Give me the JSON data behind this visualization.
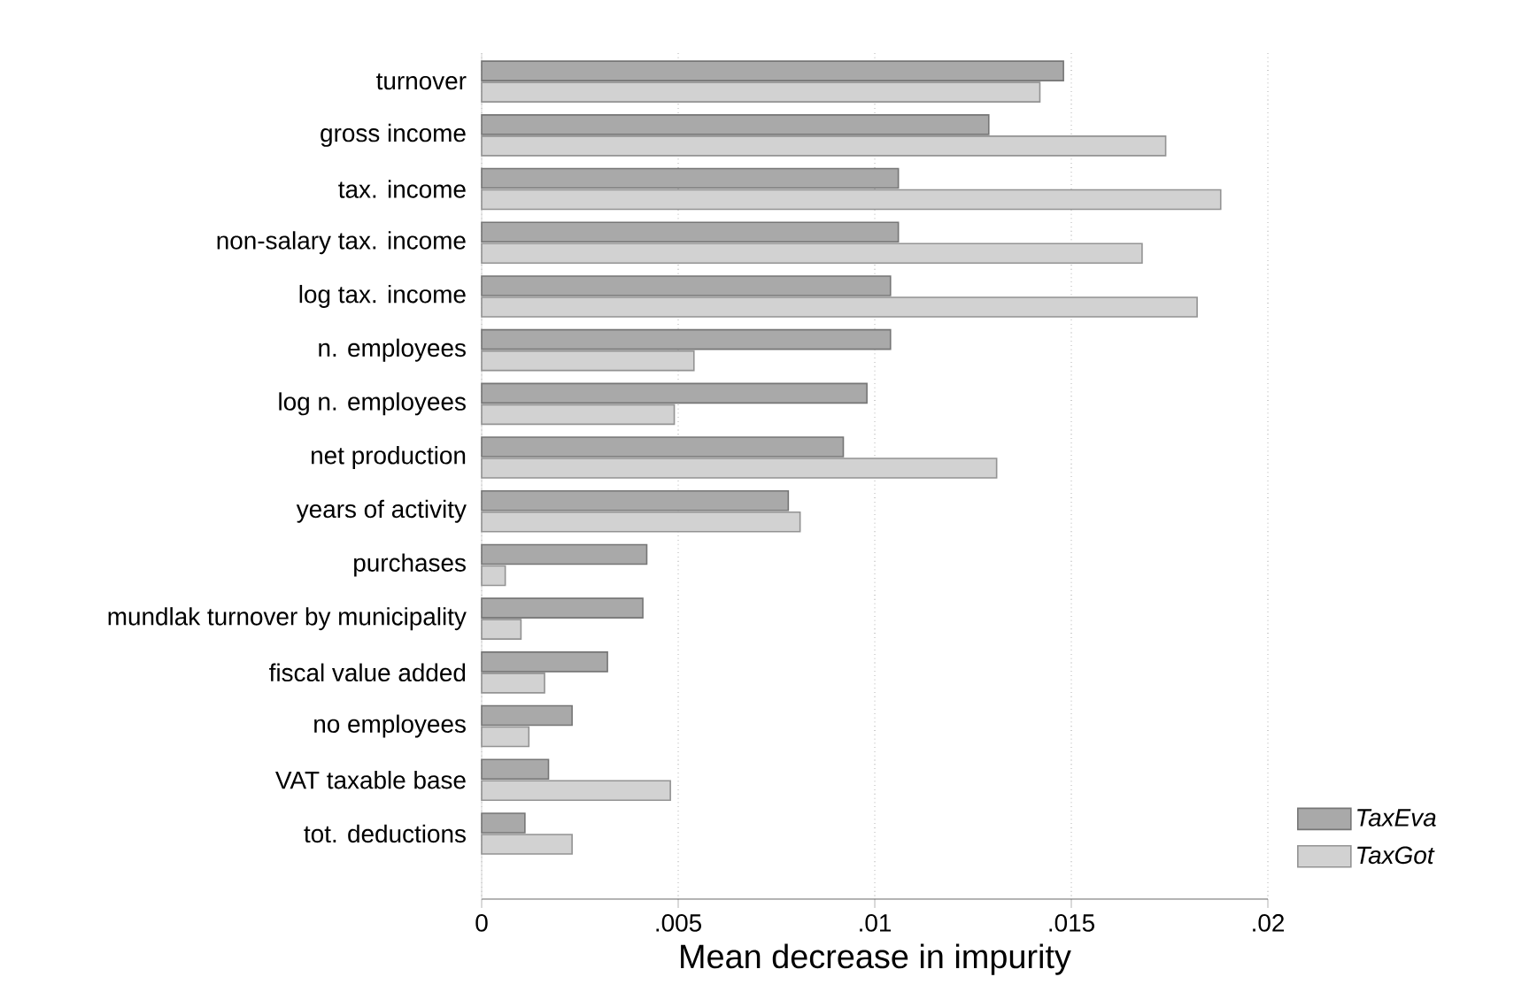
{
  "chart_data": {
    "type": "bar",
    "orientation": "horizontal",
    "xlabel": "Mean decrease in impurity",
    "categories": [
      "turnover",
      "gross income",
      "tax. income",
      "non-salary tax. income",
      "log tax. income",
      "n. employees",
      "log n. employees",
      "net production",
      "years of activity",
      "purchases",
      "mundlak turnover by municipality",
      "fiscal value added",
      "no employees",
      "VAT taxable base",
      "tot. deductions"
    ],
    "series": [
      {
        "name": "TaxEva",
        "color": "#a9a9a9",
        "values": [
          0.0148,
          0.0129,
          0.0106,
          0.0106,
          0.0104,
          0.0104,
          0.0098,
          0.0092,
          0.0078,
          0.0042,
          0.0041,
          0.0032,
          0.0023,
          0.0017,
          0.0011
        ]
      },
      {
        "name": "TaxGot",
        "color": "#d2d2d2",
        "values": [
          0.0142,
          0.0174,
          0.0188,
          0.0168,
          0.0182,
          0.0054,
          0.0049,
          0.0131,
          0.0081,
          0.0006,
          0.001,
          0.0016,
          0.0012,
          0.0048,
          0.0023
        ]
      }
    ],
    "xlim": [
      0,
      0.02
    ],
    "xticks": [
      0,
      {
        "value": 0.005,
        "label": ".005"
      },
      {
        "value": 0.01,
        "label": ".01"
      },
      {
        "value": 0.015,
        "label": ".015"
      },
      {
        "value": 0.02,
        "label": ".02"
      }
    ],
    "grid": "x",
    "legend": "bottom right"
  }
}
